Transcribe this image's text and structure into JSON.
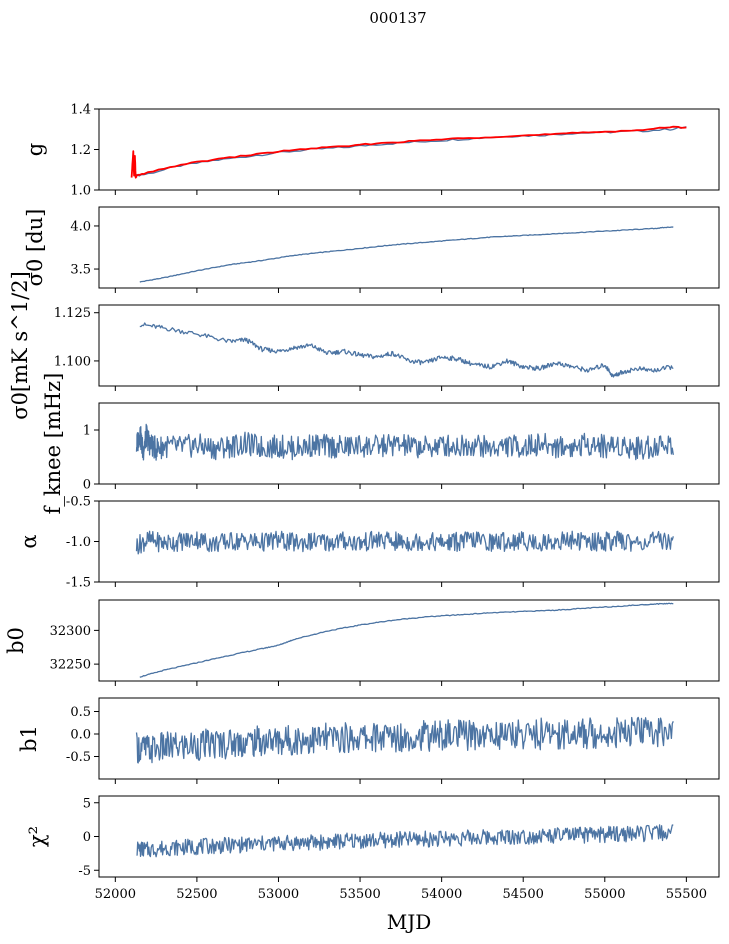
{
  "figure": {
    "title": "000137"
  },
  "colors": {
    "series": "#4c74a3",
    "overlay": "#ff0000",
    "frame": "#000000"
  },
  "chart_data": [
    {
      "type": "line",
      "ylabel": "g",
      "ylim": [
        1.0,
        1.4
      ],
      "yticks": [
        1.0,
        1.2,
        1.4
      ],
      "ytick_labels": [
        "1.0",
        "1.2",
        "1.4"
      ],
      "series": [
        {
          "color": "#4c74a3",
          "x": [
            52120,
            52200,
            52400,
            52600,
            52800,
            53000,
            53200,
            53400,
            53600,
            53800,
            54000,
            54200,
            54400,
            54600,
            54800,
            55000,
            55200,
            55400,
            55500
          ],
          "values": [
            1.07,
            1.08,
            1.12,
            1.145,
            1.165,
            1.185,
            1.2,
            1.21,
            1.225,
            1.235,
            1.245,
            1.255,
            1.265,
            1.27,
            1.28,
            1.285,
            1.29,
            1.3,
            1.31
          ]
        },
        {
          "color": "#ff0000",
          "x": [
            52100,
            52110,
            52115,
            52120,
            52125,
            52130,
            52200,
            52400,
            52600,
            52800,
            53000,
            53200,
            53400,
            53600,
            53800,
            54000,
            54200,
            54400,
            54600,
            54800,
            55000,
            55200,
            55400,
            55500
          ],
          "values": [
            1.06,
            1.19,
            1.07,
            1.17,
            1.06,
            1.07,
            1.085,
            1.125,
            1.15,
            1.17,
            1.19,
            1.205,
            1.215,
            1.23,
            1.24,
            1.25,
            1.258,
            1.266,
            1.272,
            1.28,
            1.288,
            1.295,
            1.31,
            1.31
          ]
        }
      ]
    },
    {
      "type": "line",
      "ylabel": "σ0 [du]",
      "ylim": [
        3.28,
        4.22
      ],
      "yticks": [
        3.5,
        4.0
      ],
      "ytick_labels": [
        "3.5",
        "4.0"
      ],
      "series": [
        {
          "color": "#4c74a3",
          "x": [
            52150,
            52300,
            52500,
            52700,
            52900,
            53100,
            53300,
            53500,
            53700,
            53900,
            54100,
            54300,
            54500,
            54700,
            54900,
            55100,
            55300,
            55420
          ],
          "values": [
            3.35,
            3.4,
            3.48,
            3.55,
            3.6,
            3.66,
            3.7,
            3.74,
            3.78,
            3.81,
            3.84,
            3.87,
            3.89,
            3.91,
            3.93,
            3.95,
            3.97,
            3.99
          ]
        }
      ]
    },
    {
      "type": "line",
      "ylabel": "σ0[mK s^1/2]",
      "ylim": [
        1.087,
        1.129
      ],
      "yticks": [
        1.1,
        1.125
      ],
      "ytick_labels": [
        "1.100",
        "1.125"
      ],
      "series": [
        {
          "color": "#4c74a3",
          "x": [
            52150,
            52300,
            52500,
            52700,
            52800,
            52900,
            53000,
            53100,
            53200,
            53300,
            53400,
            53500,
            53600,
            53700,
            53800,
            53900,
            54000,
            54100,
            54200,
            54300,
            54400,
            54500,
            54600,
            54700,
            54800,
            54900,
            55000,
            55050,
            55100,
            55200,
            55300,
            55420
          ],
          "values": [
            1.119,
            1.117,
            1.114,
            1.11,
            1.111,
            1.106,
            1.105,
            1.107,
            1.108,
            1.104,
            1.105,
            1.103,
            1.102,
            1.104,
            1.1,
            1.099,
            1.102,
            1.101,
            1.098,
            1.097,
            1.1,
            1.097,
            1.096,
            1.099,
            1.097,
            1.095,
            1.098,
            1.092,
            1.094,
            1.096,
            1.095,
            1.097
          ]
        }
      ]
    },
    {
      "type": "line",
      "ylabel": "f_knee [mHz]",
      "ylim": [
        0,
        1.5
      ],
      "yticks": [
        0,
        1
      ],
      "ytick_labels": [
        "0",
        "1"
      ],
      "series": [
        {
          "color": "#4c74a3",
          "x": [
            52130,
            52150,
            52170,
            52190,
            52210,
            52250,
            52300,
            52400,
            52500,
            52600,
            52700,
            52800,
            52900,
            53000,
            53100,
            53200,
            53300,
            53400,
            53500,
            53600,
            53700,
            53800,
            53900,
            54000,
            54100,
            54200,
            54300,
            54400,
            54500,
            54600,
            54700,
            54800,
            54900,
            55000,
            55100,
            55200,
            55300,
            55420
          ],
          "values": [
            0.7,
            0.95,
            0.6,
            0.9,
            0.75,
            0.65,
            0.7,
            0.68,
            0.72,
            0.66,
            0.7,
            0.74,
            0.68,
            0.7,
            0.66,
            0.72,
            0.7,
            0.68,
            0.71,
            0.69,
            0.73,
            0.7,
            0.67,
            0.72,
            0.7,
            0.74,
            0.66,
            0.71,
            0.69,
            0.73,
            0.7,
            0.68,
            0.75,
            0.7,
            0.72,
            0.66,
            0.7,
            0.74
          ]
        }
      ]
    },
    {
      "type": "line",
      "ylabel": "α",
      "ylim": [
        -1.5,
        -0.5
      ],
      "yticks": [
        -1.5,
        -1.0,
        -0.5
      ],
      "ytick_labels": [
        "-1.5",
        "-1.0",
        "-0.5"
      ],
      "series": [
        {
          "color": "#4c74a3",
          "x": [
            52130,
            52200,
            52300,
            52400,
            52500,
            52600,
            52700,
            52800,
            52900,
            53000,
            53100,
            53200,
            53300,
            53400,
            53500,
            53600,
            53700,
            53800,
            53900,
            54000,
            54100,
            54200,
            54300,
            54400,
            54500,
            54600,
            54700,
            54800,
            54900,
            55000,
            55100,
            55200,
            55300,
            55420
          ],
          "values": [
            -1.05,
            -0.98,
            -1.02,
            -1.0,
            -0.97,
            -1.03,
            -1.0,
            -0.99,
            -1.01,
            -0.98,
            -1.02,
            -1.0,
            -1.01,
            -0.99,
            -1.02,
            -0.98,
            -1.0,
            -1.01,
            -0.99,
            -1.02,
            -1.0,
            -0.98,
            -1.01,
            -1.0,
            -0.99,
            -1.02,
            -1.0,
            -0.98,
            -1.01,
            -1.0,
            -0.99,
            -1.02,
            -1.0,
            -0.98
          ]
        }
      ]
    },
    {
      "type": "line",
      "ylabel": "b0",
      "ylim": [
        32225,
        32345
      ],
      "yticks": [
        32250,
        32300
      ],
      "ytick_labels": [
        "32250",
        "32300"
      ],
      "series": [
        {
          "color": "#4c74a3",
          "x": [
            52150,
            52300,
            52500,
            52700,
            52900,
            53000,
            53100,
            53300,
            53500,
            53700,
            53900,
            54100,
            54300,
            54500,
            54700,
            54900,
            55100,
            55300,
            55420
          ],
          "values": [
            32231,
            32241,
            32252,
            32263,
            32273,
            32278,
            32287,
            32299,
            32308,
            32315,
            32320,
            32323,
            32326,
            32328,
            32330,
            32333,
            32336,
            32339,
            32340
          ]
        }
      ]
    },
    {
      "type": "line",
      "ylabel": "b1",
      "ylim": [
        -1.0,
        0.8
      ],
      "yticks": [
        -0.5,
        0.0,
        0.5
      ],
      "ytick_labels": [
        "-0.5",
        "0.0",
        "0.5"
      ],
      "series": [
        {
          "color": "#4c74a3",
          "x": [
            52130,
            52200,
            52300,
            52400,
            52500,
            52600,
            52700,
            52800,
            52900,
            53000,
            53100,
            53200,
            53300,
            53400,
            53500,
            53600,
            53700,
            53800,
            53900,
            54000,
            54100,
            54200,
            54300,
            54400,
            54500,
            54600,
            54700,
            54800,
            54900,
            55000,
            55100,
            55200,
            55300,
            55420
          ],
          "values": [
            -0.3,
            -0.35,
            -0.3,
            -0.28,
            -0.25,
            -0.22,
            -0.2,
            -0.18,
            -0.16,
            -0.15,
            -0.13,
            -0.12,
            -0.1,
            -0.09,
            -0.08,
            -0.07,
            -0.06,
            -0.05,
            -0.04,
            -0.03,
            -0.03,
            -0.02,
            -0.02,
            -0.01,
            0.0,
            0.0,
            0.01,
            0.02,
            0.02,
            0.03,
            0.04,
            0.05,
            0.06,
            0.07
          ]
        }
      ]
    },
    {
      "type": "line",
      "ylabel": "χ²",
      "xlabel": "MJD",
      "ylim": [
        -6,
        6
      ],
      "yticks": [
        -5,
        0,
        5
      ],
      "ytick_labels": [
        "-5",
        "0",
        "5"
      ],
      "series": [
        {
          "color": "#4c74a3",
          "x": [
            52130,
            52200,
            52300,
            52400,
            52500,
            52600,
            52700,
            52800,
            52900,
            53000,
            53100,
            53200,
            53300,
            53400,
            53500,
            53600,
            53700,
            53800,
            53900,
            54000,
            54100,
            54200,
            54300,
            54400,
            54500,
            54600,
            54700,
            54800,
            54900,
            55000,
            55100,
            55200,
            55300,
            55420
          ],
          "values": [
            -1.8,
            -2.0,
            -1.7,
            -1.6,
            -1.5,
            -1.4,
            -1.3,
            -1.2,
            -1.1,
            -1.0,
            -0.9,
            -0.9,
            -0.8,
            -0.7,
            -0.6,
            -0.6,
            -0.5,
            -0.4,
            -0.4,
            -0.3,
            -0.2,
            -0.2,
            -0.1,
            0.0,
            0.0,
            0.1,
            0.1,
            0.2,
            0.2,
            0.3,
            0.4,
            0.4,
            0.5,
            0.6
          ]
        }
      ]
    }
  ],
  "x_axis": {
    "label": "MJD",
    "xlim": [
      51900,
      55700
    ],
    "ticks": [
      52000,
      52500,
      53000,
      53500,
      54000,
      54500,
      55000,
      55500
    ],
    "tick_labels": [
      "52000",
      "52500",
      "53000",
      "53500",
      "54000",
      "54500",
      "55000",
      "55500"
    ]
  }
}
